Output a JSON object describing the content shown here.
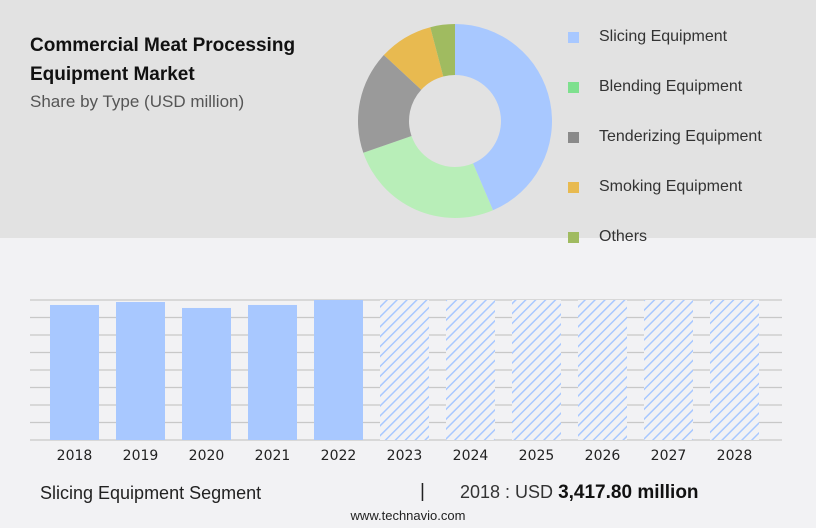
{
  "header": {
    "title": "Commercial Meat Processing Equipment Market",
    "subtitle": "Share by Type (USD million)"
  },
  "chart_data": [
    {
      "type": "pie",
      "title": "Commercial Meat Processing Equipment Market",
      "subtitle": "Share by Type (USD million)",
      "donut": true,
      "slices": [
        {
          "label": "Slicing Equipment",
          "share": 43.6,
          "color": "#a8c8ff"
        },
        {
          "label": "Blending Equipment",
          "share": 26.1,
          "color": "#b8eeb8"
        },
        {
          "label": "Tenderizing Equipment",
          "share": 17.2,
          "color": "#9a9a9a"
        },
        {
          "label": "Smoking Equipment",
          "share": 9.0,
          "color": "#e8ba50"
        },
        {
          "label": "Others",
          "share": 4.1,
          "color": "#a0bb60"
        }
      ],
      "legend_colors": [
        "#a8c8ff",
        "#7ee08e",
        "#8a8a8a",
        "#e8ba50",
        "#a0bb60"
      ],
      "legend_placement": "right"
    },
    {
      "type": "bar",
      "categories": [
        "2018",
        "2019",
        "2020",
        "2021",
        "2022",
        "2023",
        "2024",
        "2025",
        "2026",
        "2027",
        "2028"
      ],
      "values": [
        3417.8,
        3493,
        3342,
        3418,
        3544,
        null,
        null,
        null,
        null,
        null,
        null
      ],
      "forecast": [
        false,
        false,
        false,
        false,
        false,
        true,
        true,
        true,
        true,
        true,
        true
      ],
      "ylim": [
        0,
        3544
      ],
      "grid": true,
      "color": "#a8c8ff"
    }
  ],
  "footer": {
    "segment": "Slicing Equipment Segment",
    "separator": "|",
    "year_label": "2018 : USD",
    "value": "3,417.80 million",
    "site": "www.technavio.com"
  }
}
